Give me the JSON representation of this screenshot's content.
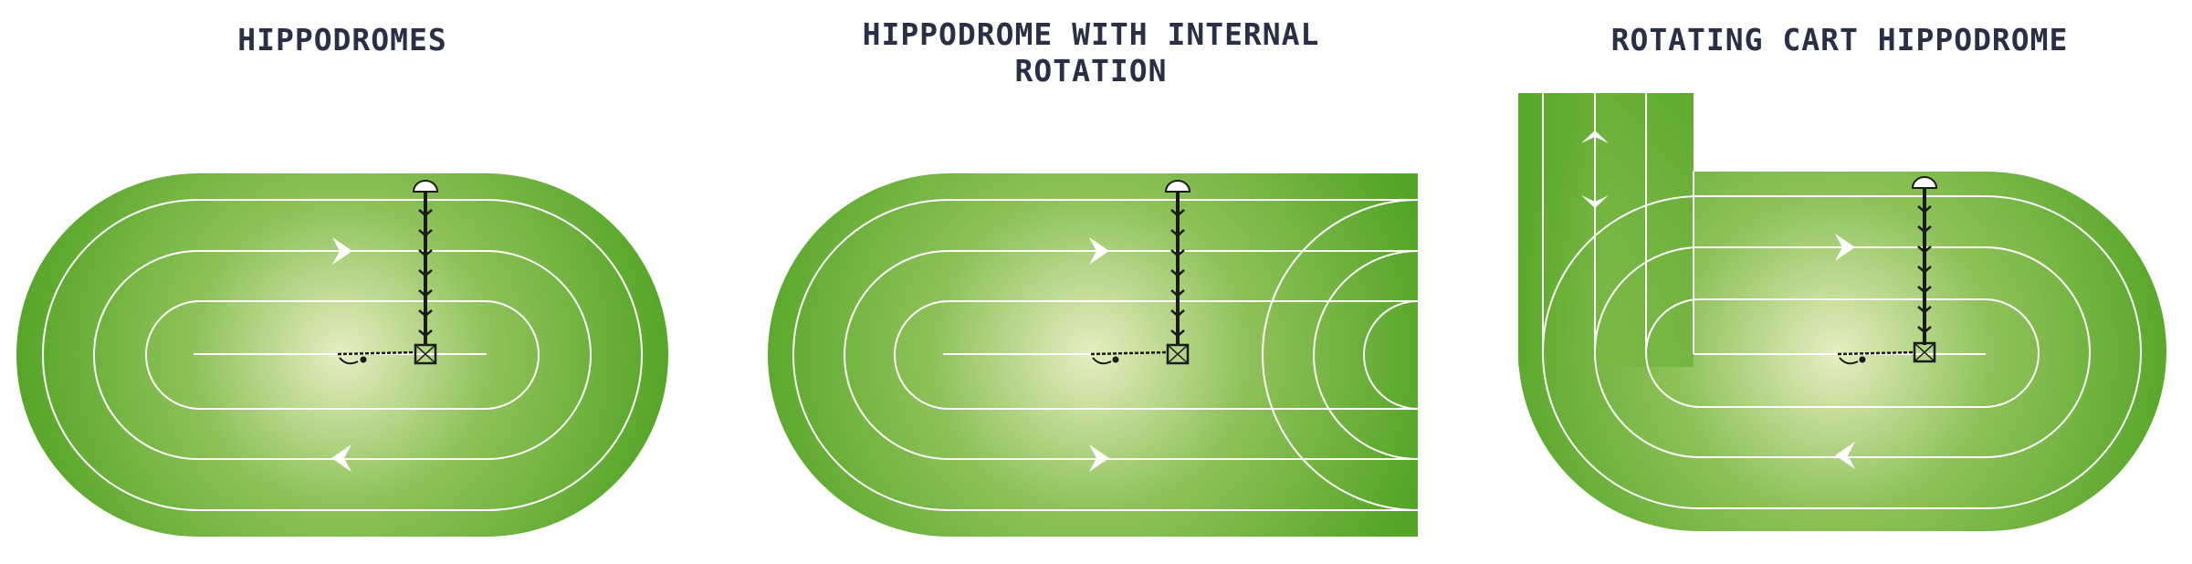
{
  "panels": [
    {
      "title": "HIPPODROMES"
    },
    {
      "title": "HIPPODROME WITH INTERNAL ROTATION"
    },
    {
      "title": "ROTATING CART HIPPODROME"
    }
  ],
  "colors": {
    "title": "#2b2f45",
    "track_dark": "#5aa82a",
    "track_light": "#e6eec2",
    "lane_lines": "#ffffff",
    "equipment": "#1a1a1a"
  },
  "icons": [
    "direction-arrow-icon",
    "pivot-mast-icon",
    "sprinkler-arm-icon",
    "lamp-icon"
  ]
}
